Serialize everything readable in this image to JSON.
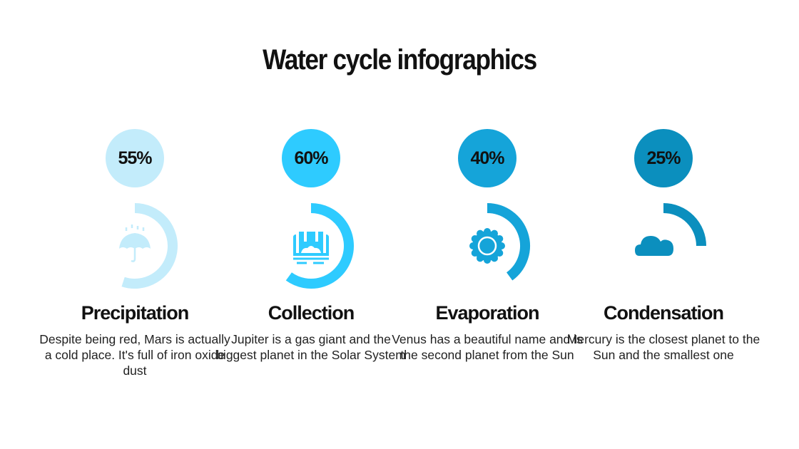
{
  "title": "Water cycle infographics",
  "items": [
    {
      "percent_label": "55%",
      "percent": 55,
      "color": "#c3ecfb",
      "icon": "umbrella-rain-icon",
      "heading": "Precipitation",
      "text": "Despite being red, Mars is actually a cold place. It's full of iron oxide dust"
    },
    {
      "percent_label": "60%",
      "percent": 60,
      "color": "#2ecbff",
      "icon": "waterfall-icon",
      "heading": "Collection",
      "text": "Jupiter is a gas giant and the biggest planet in the Solar System"
    },
    {
      "percent_label": "40%",
      "percent": 40,
      "color": "#15a4d9",
      "icon": "sun-icon",
      "heading": "Evaporation",
      "text": "Venus has a beautiful name and is the second planet from the Sun"
    },
    {
      "percent_label": "25%",
      "percent": 25,
      "color": "#0b8fbe",
      "icon": "cloud-icon",
      "heading": "Condensation",
      "text": "Mercury is the closest planet to the Sun and the smallest one"
    }
  ]
}
